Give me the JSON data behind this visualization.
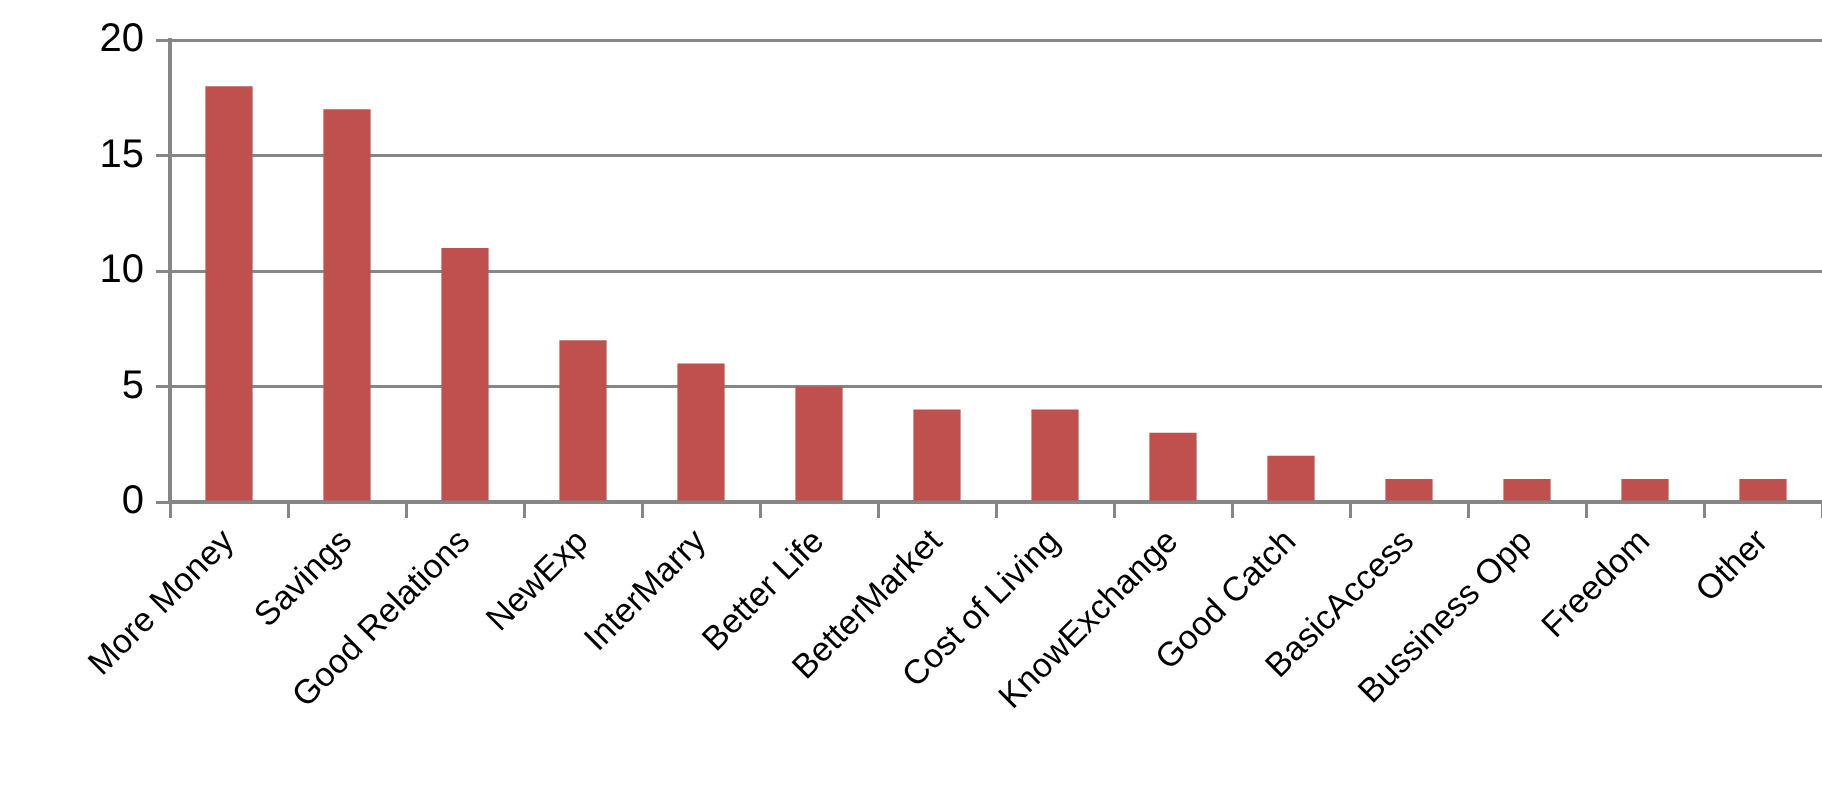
{
  "chart_data": {
    "type": "bar",
    "categories": [
      "More Money",
      "Savings",
      "Good Relations",
      "NewExp",
      "InterMarry",
      "Better Life",
      "BetterMarket",
      "Cost of Living",
      "KnowExchange",
      "Good Catch",
      "BasicAccess",
      "Bussiness Opp",
      "Freedom",
      "Other"
    ],
    "values": [
      18,
      17,
      11,
      7,
      6,
      5,
      4,
      4,
      3,
      2,
      1,
      1,
      1,
      1
    ],
    "color": "#c0504d",
    "ylim": [
      0,
      20
    ],
    "yticks": [
      0,
      5,
      10,
      15,
      20
    ],
    "grid": "y"
  }
}
